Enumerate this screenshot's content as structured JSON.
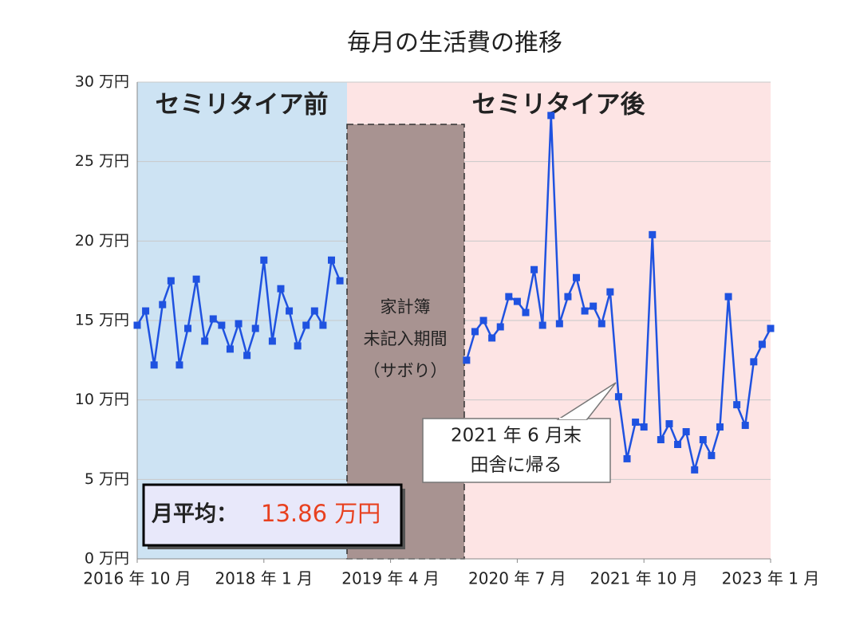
{
  "chart_data": {
    "type": "line",
    "title": "毎月の生活費の推移",
    "ylim": [
      0,
      30
    ],
    "yticks": [
      {
        "value": 0,
        "label": "0 万円"
      },
      {
        "value": 5,
        "label": "5 万円"
      },
      {
        "value": 10,
        "label": "10 万円"
      },
      {
        "value": 15,
        "label": "15 万円"
      },
      {
        "value": 20,
        "label": "20 万円"
      },
      {
        "value": 25,
        "label": "25 万円"
      },
      {
        "value": 30,
        "label": "30 万円"
      }
    ],
    "xlim": [
      "2016-10",
      "2023-01"
    ],
    "xticks": [
      {
        "value": "2016-10",
        "label": "2016 年 10 月"
      },
      {
        "value": "2018-01",
        "label": "2018 年 1 月"
      },
      {
        "value": "2019-04",
        "label": "2019 年 4 月"
      },
      {
        "value": "2020-07",
        "label": "2020 年 7 月"
      },
      {
        "value": "2021-10",
        "label": "2021 年 10 月"
      },
      {
        "value": "2023-01",
        "label": "2023 年 1 月"
      }
    ],
    "grid": true,
    "series": [
      {
        "color": "#1f52e0",
        "x": [
          "2016-10",
          "2016-11",
          "2016-12",
          "2017-01",
          "2017-02",
          "2017-03",
          "2017-04",
          "2017-05",
          "2017-06",
          "2017-07",
          "2017-08",
          "2017-09",
          "2017-10",
          "2017-11",
          "2017-12",
          "2018-01",
          "2018-02",
          "2018-03",
          "2018-04",
          "2018-05",
          "2018-06",
          "2018-07",
          "2018-08",
          "2018-09",
          "2018-10"
        ],
        "values": [
          14.7,
          15.6,
          12.2,
          16.0,
          17.5,
          12.2,
          14.5,
          17.6,
          13.7,
          15.1,
          14.7,
          13.2,
          14.8,
          12.8,
          14.5,
          18.8,
          13.7,
          17.0,
          15.6,
          13.4,
          14.7,
          15.6,
          14.7,
          18.8,
          17.5
        ]
      },
      {
        "color": "#1f52e0",
        "x": [
          "2020-01",
          "2020-02",
          "2020-03",
          "2020-04",
          "2020-05",
          "2020-06",
          "2020-07",
          "2020-08",
          "2020-09",
          "2020-10",
          "2020-11",
          "2020-12",
          "2021-01",
          "2021-02",
          "2021-03",
          "2021-04",
          "2021-05",
          "2021-06",
          "2021-07",
          "2021-08",
          "2021-09",
          "2021-10",
          "2021-11",
          "2021-12",
          "2022-01",
          "2022-02",
          "2022-03",
          "2022-04",
          "2022-05",
          "2022-06",
          "2022-07",
          "2022-08",
          "2022-09",
          "2022-10",
          "2022-11",
          "2022-12",
          "2023-01"
        ],
        "values": [
          12.5,
          14.3,
          15.0,
          13.9,
          14.6,
          16.5,
          16.2,
          15.5,
          18.2,
          14.7,
          27.9,
          14.8,
          16.5,
          17.7,
          15.6,
          15.9,
          14.8,
          16.8,
          10.2,
          6.3,
          8.6,
          8.3,
          20.4,
          7.5,
          8.5,
          7.2,
          8.0,
          5.6,
          7.5,
          6.5,
          8.3,
          16.5,
          9.7,
          8.4,
          12.4,
          13.5,
          14.5
        ]
      }
    ],
    "regions": [
      "セミリタイア前",
      "セミリタイア後"
    ],
    "gap_label": [
      "家計簿",
      "未記入期間",
      "（サボり）"
    ],
    "annotation": [
      "2021 年 6 月末",
      "田舎に帰る"
    ],
    "average": {
      "label": "月平均：",
      "value": 13.86,
      "value_label": "13.86 万円"
    }
  }
}
